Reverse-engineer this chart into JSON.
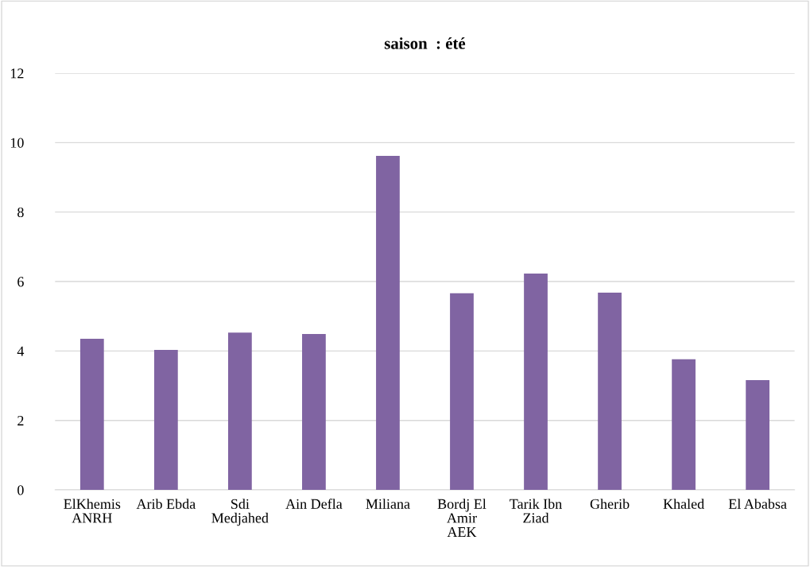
{
  "chart_data": {
    "type": "bar",
    "title": "saison  : été",
    "categories": [
      "ElKhemis\nANRH",
      "Arib Ebda",
      "Sdi\nMedjahed",
      "Ain Defla",
      "Miliana",
      "Bordj El\nAmir\nAEK",
      "Tarik Ibn\nZiad",
      "Gherib",
      "Khaled",
      "El Ababsa"
    ],
    "values": [
      4.35,
      4.03,
      4.53,
      4.49,
      9.62,
      5.66,
      6.23,
      5.68,
      3.76,
      3.16
    ],
    "color": "#8064a2",
    "ylim": [
      0,
      12
    ],
    "yticks": [
      0,
      2,
      4,
      6,
      8,
      10,
      12
    ],
    "grid": "y",
    "legend": false
  }
}
